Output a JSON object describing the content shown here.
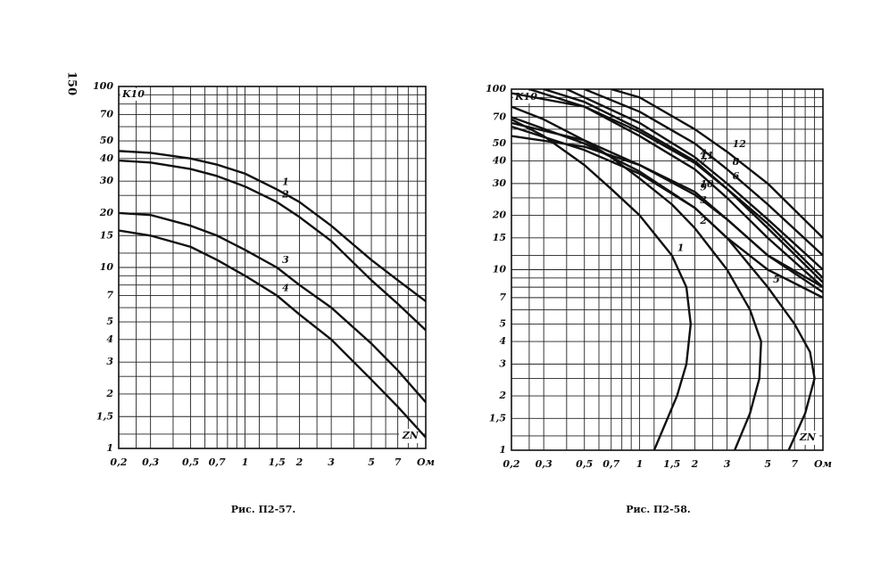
{
  "page_number": "150",
  "chart_data": [
    {
      "type": "line",
      "caption": "Рис. П2-57.",
      "ylabel": "K10",
      "xlabel": "ZN",
      "log_x": true,
      "log_y": true,
      "grid": true,
      "xlim": [
        0.2,
        10
      ],
      "ylim": [
        1,
        100
      ],
      "xticks": [
        {
          "value": 0.2,
          "label": "0,2"
        },
        {
          "value": 0.3,
          "label": "0,3"
        },
        {
          "value": 0.5,
          "label": "0,5"
        },
        {
          "value": 0.7,
          "label": "0,7"
        },
        1,
        {
          "value": 1.5,
          "label": "1,5"
        },
        2,
        3,
        5,
        7,
        {
          "value": 10,
          "label": "Ом"
        }
      ],
      "yticks": [
        1,
        {
          "value": 1.5,
          "label": "1,5"
        },
        2,
        3,
        4,
        5,
        7,
        10,
        15,
        20,
        30,
        40,
        50,
        70,
        100
      ],
      "xgrid": [
        0.25,
        0.4,
        0.6,
        0.8,
        0.9,
        1.2,
        2.5,
        4,
        6,
        8,
        9
      ],
      "ygrid": [
        1.2,
        2.5,
        6,
        8,
        9,
        12,
        25,
        60,
        80,
        90
      ],
      "color": "#111",
      "series": [
        {
          "name": "1",
          "x": [
            0.2,
            0.3,
            0.5,
            0.7,
            1,
            1.5,
            2,
            3,
            5,
            7,
            10
          ],
          "values": [
            44,
            43,
            40,
            37,
            33,
            27,
            23,
            17,
            11,
            8.5,
            6.5
          ]
        },
        {
          "name": "2",
          "x": [
            0.2,
            0.3,
            0.5,
            0.7,
            1,
            1.5,
            2,
            3,
            5,
            7,
            10
          ],
          "values": [
            39,
            38,
            35,
            32,
            28,
            23,
            19,
            14,
            8.5,
            6.3,
            4.5
          ]
        },
        {
          "name": "3",
          "x": [
            0.2,
            0.3,
            0.5,
            0.7,
            1,
            1.5,
            2,
            3,
            5,
            7,
            10
          ],
          "values": [
            20,
            19.5,
            17,
            15,
            12.5,
            10,
            8,
            6,
            3.8,
            2.7,
            1.8
          ]
        },
        {
          "name": "4",
          "x": [
            0.2,
            0.3,
            0.5,
            0.7,
            1,
            1.5,
            2,
            3,
            5,
            7,
            10
          ],
          "values": [
            16,
            15,
            13,
            11,
            9,
            7,
            5.5,
            4,
            2.4,
            1.7,
            1.15
          ]
        }
      ]
    },
    {
      "type": "line",
      "caption": "Рис. П2-58.",
      "ylabel": "K10",
      "xlabel": "ZN",
      "log_x": true,
      "log_y": true,
      "grid": true,
      "xlim": [
        0.2,
        10
      ],
      "ylim": [
        1,
        100
      ],
      "xticks": [
        {
          "value": 0.2,
          "label": "0,2"
        },
        {
          "value": 0.3,
          "label": "0,3"
        },
        {
          "value": 0.5,
          "label": "0,5"
        },
        {
          "value": 0.7,
          "label": "0,7"
        },
        1,
        {
          "value": 1.5,
          "label": "1,5"
        },
        2,
        3,
        5,
        7,
        {
          "value": 10,
          "label": "Ом"
        }
      ],
      "yticks": [
        1,
        {
          "value": 1.5,
          "label": "1,5"
        },
        2,
        3,
        4,
        5,
        7,
        10,
        15,
        20,
        30,
        40,
        50,
        70,
        100
      ],
      "xgrid": [
        0.25,
        0.4,
        0.6,
        0.8,
        0.9,
        1.2,
        2.5,
        4,
        6,
        8,
        9
      ],
      "ygrid": [
        1.2,
        2.5,
        6,
        8,
        9,
        12,
        25,
        60,
        80,
        90
      ],
      "color": "#111",
      "series": [
        {
          "name": "1",
          "x": [
            0.2,
            0.3,
            0.5,
            0.7,
            1,
            1.5,
            1.8,
            1.9,
            1.8,
            1.6,
            1.2
          ],
          "values": [
            68,
            55,
            38,
            28,
            20,
            12,
            8,
            5,
            3,
            2,
            1
          ]
        },
        {
          "name": "2",
          "x": [
            0.2,
            0.3,
            0.5,
            0.7,
            1,
            1.5,
            2,
            3,
            4,
            4.6,
            4.5,
            4,
            3.3
          ],
          "values": [
            80,
            68,
            52,
            42,
            32,
            23,
            17,
            10,
            6,
            4,
            2.5,
            1.6,
            1
          ]
        },
        {
          "name": "3",
          "x": [
            0.2,
            0.5,
            1,
            2,
            3,
            5,
            10
          ],
          "values": [
            70,
            50,
            35,
            22,
            15,
            10,
            7
          ]
        },
        {
          "name": "4",
          "x": [
            0.3,
            0.5,
            1,
            2,
            3,
            5,
            10
          ],
          "values": [
            100,
            85,
            60,
            40,
            28,
            18,
            9
          ]
        },
        {
          "name": "5",
          "x": [
            0.2,
            0.5,
            1,
            2,
            3,
            5,
            7,
            8.5,
            9,
            8,
            6.5
          ],
          "values": [
            62,
            46,
            34,
            22,
            15,
            8,
            5,
            3.5,
            2.5,
            1.6,
            1
          ]
        },
        {
          "name": "6",
          "x": [
            0.4,
            1,
            2,
            3,
            5,
            10
          ],
          "values": [
            100,
            65,
            42,
            30,
            19,
            10
          ]
        },
        {
          "name": "7",
          "x": [
            0.25,
            0.5,
            1,
            2,
            3,
            5,
            10
          ],
          "values": [
            100,
            80,
            55,
            36,
            25,
            15,
            8
          ]
        },
        {
          "name": "8",
          "x": [
            0.5,
            1,
            2,
            3,
            5,
            10
          ],
          "values": [
            100,
            75,
            50,
            36,
            23,
            12
          ]
        },
        {
          "name": "9",
          "x": [
            0.2,
            0.5,
            1,
            2,
            3,
            5,
            10
          ],
          "values": [
            55,
            48,
            38,
            26,
            19,
            12,
            7.5
          ]
        },
        {
          "name": "10",
          "x": [
            0.2,
            0.5,
            1,
            2,
            3,
            5,
            10
          ],
          "values": [
            65,
            52,
            38,
            27,
            19,
            12,
            8
          ]
        },
        {
          "name": "11",
          "x": [
            0.2,
            0.5,
            1,
            2,
            3,
            5,
            10
          ],
          "values": [
            95,
            80,
            58,
            39,
            28,
            17,
            8.5
          ]
        },
        {
          "name": "12",
          "x": [
            0.7,
            1,
            2,
            3,
            5,
            10
          ],
          "values": [
            100,
            90,
            60,
            45,
            30,
            15
          ]
        }
      ]
    }
  ]
}
